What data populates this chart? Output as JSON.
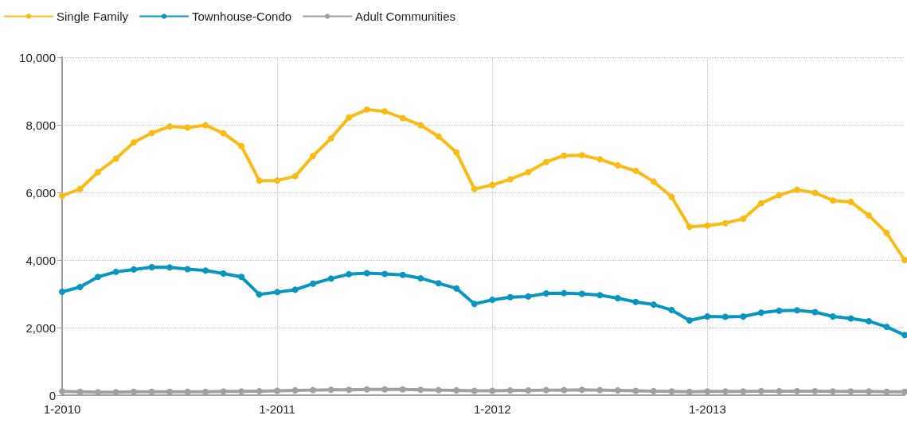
{
  "chart_data": {
    "type": "line",
    "categories": [
      "1-2010",
      null,
      null,
      null,
      null,
      null,
      null,
      null,
      null,
      null,
      null,
      null,
      "1-2011",
      null,
      null,
      null,
      null,
      null,
      null,
      null,
      null,
      null,
      null,
      null,
      "1-2012",
      null,
      null,
      null,
      null,
      null,
      null,
      null,
      null,
      null,
      null,
      null,
      "1-2013",
      null,
      null,
      null,
      null,
      null,
      null,
      null,
      null,
      null,
      null,
      null
    ],
    "series": [
      {
        "name": "Single Family",
        "color": "#fbbb16",
        "values": [
          5900,
          6100,
          6600,
          7000,
          7480,
          7760,
          7950,
          7920,
          7990,
          7750,
          7370,
          6350,
          6350,
          6480,
          7080,
          7600,
          8220,
          8450,
          8400,
          8200,
          7990,
          7660,
          7180,
          6100,
          6220,
          6390,
          6600,
          6900,
          7090,
          7100,
          6980,
          6800,
          6640,
          6320,
          5870,
          4980,
          5020,
          5090,
          5220,
          5680,
          5920,
          6080,
          5990,
          5760,
          5720,
          5320,
          4800,
          4000
        ]
      },
      {
        "name": "Townhouse-Condo",
        "color": "#0896c1",
        "values": [
          3060,
          3200,
          3500,
          3650,
          3720,
          3790,
          3780,
          3730,
          3690,
          3600,
          3500,
          2980,
          3050,
          3120,
          3300,
          3450,
          3580,
          3610,
          3590,
          3560,
          3460,
          3310,
          3160,
          2700,
          2820,
          2900,
          2920,
          3010,
          3020,
          3000,
          2960,
          2870,
          2760,
          2680,
          2520,
          2210,
          2330,
          2320,
          2330,
          2440,
          2500,
          2510,
          2460,
          2330,
          2270,
          2190,
          2020,
          1780
        ]
      },
      {
        "name": "Adult Communities",
        "color": "#a0a0a0",
        "values": [
          110,
          100,
          90,
          90,
          100,
          100,
          100,
          100,
          100,
          110,
          110,
          120,
          130,
          140,
          150,
          160,
          160,
          170,
          170,
          170,
          160,
          150,
          140,
          130,
          130,
          140,
          140,
          150,
          150,
          160,
          150,
          140,
          130,
          120,
          110,
          100,
          110,
          110,
          110,
          120,
          120,
          120,
          120,
          110,
          110,
          110,
          100,
          100
        ]
      }
    ],
    "ylim": [
      0,
      10000
    ],
    "yticks": [
      0,
      {
        "value": 2000,
        "label": "2,000"
      },
      {
        "value": 4000,
        "label": "4,000"
      },
      {
        "value": 6000,
        "label": "6,000"
      },
      {
        "value": 8000,
        "label": "8,000"
      },
      {
        "value": 10000,
        "label": "10,000"
      }
    ],
    "grid": true,
    "legend": "top left",
    "marker": "circle",
    "line_style": "solid"
  }
}
